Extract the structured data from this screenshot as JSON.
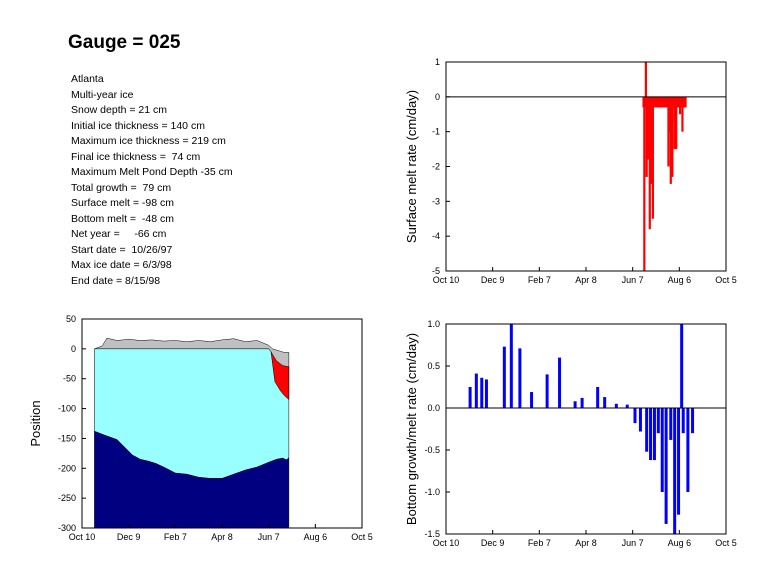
{
  "title": "Gauge = 025",
  "info_lines": [
    "Atlanta",
    "Multi-year ice",
    "Snow depth = 21 cm",
    "Initial ice thickness = 140 cm",
    "Maximum ice thickness = 219 cm",
    "Final ice thickness =  74 cm",
    "Maximum Melt Pond Depth -35 cm",
    "Total growth =  79 cm",
    "Surface melt = -98 cm",
    "Bottom melt =  -48 cm",
    "Net year =     -66 cm",
    "Start date =  10/26/97",
    "Max ice date = 6/3/98",
    "End date = 8/15/98"
  ],
  "colors": {
    "snow": "#c0c0c0",
    "ice": "#99ffff",
    "bottom_ice": "#000080",
    "melt_pond": "#ff0000",
    "surface_bars": "#ff0000",
    "bottom_bars": "#0000ff"
  },
  "chart_data": [
    {
      "id": "position",
      "type": "area",
      "ylabel": "Position",
      "xlabel": "",
      "x_ticks": [
        "Oct 10",
        "Dec 9",
        "Feb 7",
        "Apr 8",
        "Jun 7",
        "Aug 6",
        "Oct 5"
      ],
      "x_tick_days": [
        0,
        60,
        120,
        180,
        240,
        300,
        360
      ],
      "xlim": [
        0,
        360
      ],
      "ylim": [
        -300,
        50
      ],
      "y_ticks": [
        50,
        0,
        -50,
        -100,
        -150,
        -200,
        -250,
        -300
      ],
      "series": [
        {
          "role": "snow_top",
          "x": [
            16,
            26,
            32,
            45,
            60,
            75,
            90,
            105,
            120,
            135,
            150,
            165,
            180,
            195,
            210,
            225,
            240,
            245,
            250,
            255,
            260,
            266
          ],
          "y": [
            0,
            5,
            18,
            14,
            16,
            14,
            15,
            13,
            14,
            12,
            14,
            12,
            15,
            17,
            12,
            14,
            6,
            0,
            -2,
            -4,
            -6,
            -6
          ]
        },
        {
          "role": "ice_top",
          "x": [
            16,
            240,
            243,
            248,
            255,
            262,
            266
          ],
          "y": [
            0,
            0,
            -5,
            -25,
            -45,
            -58,
            -63
          ]
        },
        {
          "role": "pond_bottom",
          "x": [
            243,
            248,
            255,
            260,
            266
          ],
          "y": [
            -5,
            -55,
            -70,
            -78,
            -85
          ]
        },
        {
          "role": "ice_bottom",
          "x": [
            16,
            30,
            45,
            55,
            65,
            75,
            85,
            95,
            105,
            120,
            135,
            150,
            165,
            180,
            195,
            210,
            225,
            240,
            250,
            258,
            263,
            266
          ],
          "y": [
            -138,
            -145,
            -152,
            -165,
            -178,
            -185,
            -188,
            -192,
            -198,
            -208,
            -210,
            -215,
            -217,
            -217,
            -210,
            -203,
            -198,
            -190,
            -185,
            -183,
            -186,
            -182
          ]
        }
      ]
    },
    {
      "id": "surface_melt",
      "type": "bar",
      "ylabel": "Surface melt rate (cm/day)",
      "xlabel": "",
      "x_ticks": [
        "Oct 10",
        "Dec 9",
        "Feb 7",
        "Apr 8",
        "Jun 7",
        "Aug 6",
        "Oct 5"
      ],
      "x_tick_days": [
        0,
        60,
        120,
        180,
        240,
        300,
        360
      ],
      "xlim": [
        0,
        360
      ],
      "ylim": [
        -5,
        1
      ],
      "y_ticks": [
        1,
        0,
        -1,
        -2,
        -3,
        -4,
        -5
      ],
      "x": [
        254,
        255,
        256,
        257,
        258,
        259,
        260,
        261,
        262,
        263,
        264,
        265,
        266,
        267,
        268,
        269,
        270,
        271,
        272,
        273,
        274,
        275,
        276,
        277,
        278,
        279,
        280,
        281,
        282,
        283,
        284,
        285,
        286,
        287,
        288,
        289,
        290,
        291,
        292,
        293,
        294,
        295,
        296,
        297,
        298,
        299,
        300,
        301,
        302,
        303,
        304,
        305,
        306,
        307,
        308
      ],
      "values": [
        -0.3,
        -5.0,
        -0.3,
        1.0,
        -2.3,
        -0.3,
        -1.8,
        -0.3,
        -3.8,
        -0.3,
        -2.5,
        -0.3,
        -3.5,
        -0.3,
        -0.3,
        -0.3,
        -0.3,
        -0.3,
        -0.3,
        -0.3,
        -0.3,
        -0.3,
        -0.3,
        -0.3,
        -0.3,
        -0.3,
        -0.3,
        -0.3,
        -0.3,
        -0.3,
        -0.3,
        -0.3,
        -2.0,
        -0.3,
        -1.0,
        -2.5,
        -0.3,
        -2.3,
        -0.3,
        -0.3,
        -1.5,
        -0.3,
        -1.5,
        -0.3,
        -0.3,
        -0.3,
        -0.3,
        -0.5,
        -0.3,
        -0.3,
        -1.0,
        -0.3,
        -0.3,
        -0.3,
        -0.3
      ]
    },
    {
      "id": "bottom_melt",
      "type": "bar",
      "ylabel": "Bottom growth/melt rate (cm/day)",
      "xlabel": "",
      "x_ticks": [
        "Oct 10",
        "Dec 9",
        "Feb 7",
        "Apr 8",
        "Jun 7",
        "Aug 6",
        "Oct 5"
      ],
      "x_tick_days": [
        0,
        60,
        120,
        180,
        240,
        300,
        360
      ],
      "xlim": [
        0,
        360
      ],
      "ylim": [
        -1.5,
        1.0
      ],
      "y_ticks": [
        "1.0",
        "0.5",
        "0.0",
        "-0.5",
        "-1.0",
        "-1.5"
      ],
      "x": [
        31,
        39,
        46,
        52,
        75,
        84,
        95,
        110,
        130,
        146,
        166,
        175,
        195,
        204,
        219,
        233,
        243,
        250,
        258,
        263,
        268,
        273,
        278,
        283,
        289,
        294,
        299,
        303,
        305,
        311,
        317
      ],
      "values": [
        0.25,
        0.41,
        0.36,
        0.34,
        0.73,
        1.0,
        0.71,
        0.19,
        0.4,
        0.6,
        0.08,
        0.12,
        0.25,
        0.13,
        0.05,
        0.04,
        -0.18,
        -0.28,
        -0.52,
        -0.62,
        -0.62,
        -0.3,
        -1.0,
        -1.38,
        -0.38,
        -1.5,
        -1.27,
        1.0,
        -0.3,
        -1.0,
        -0.3
      ]
    }
  ]
}
